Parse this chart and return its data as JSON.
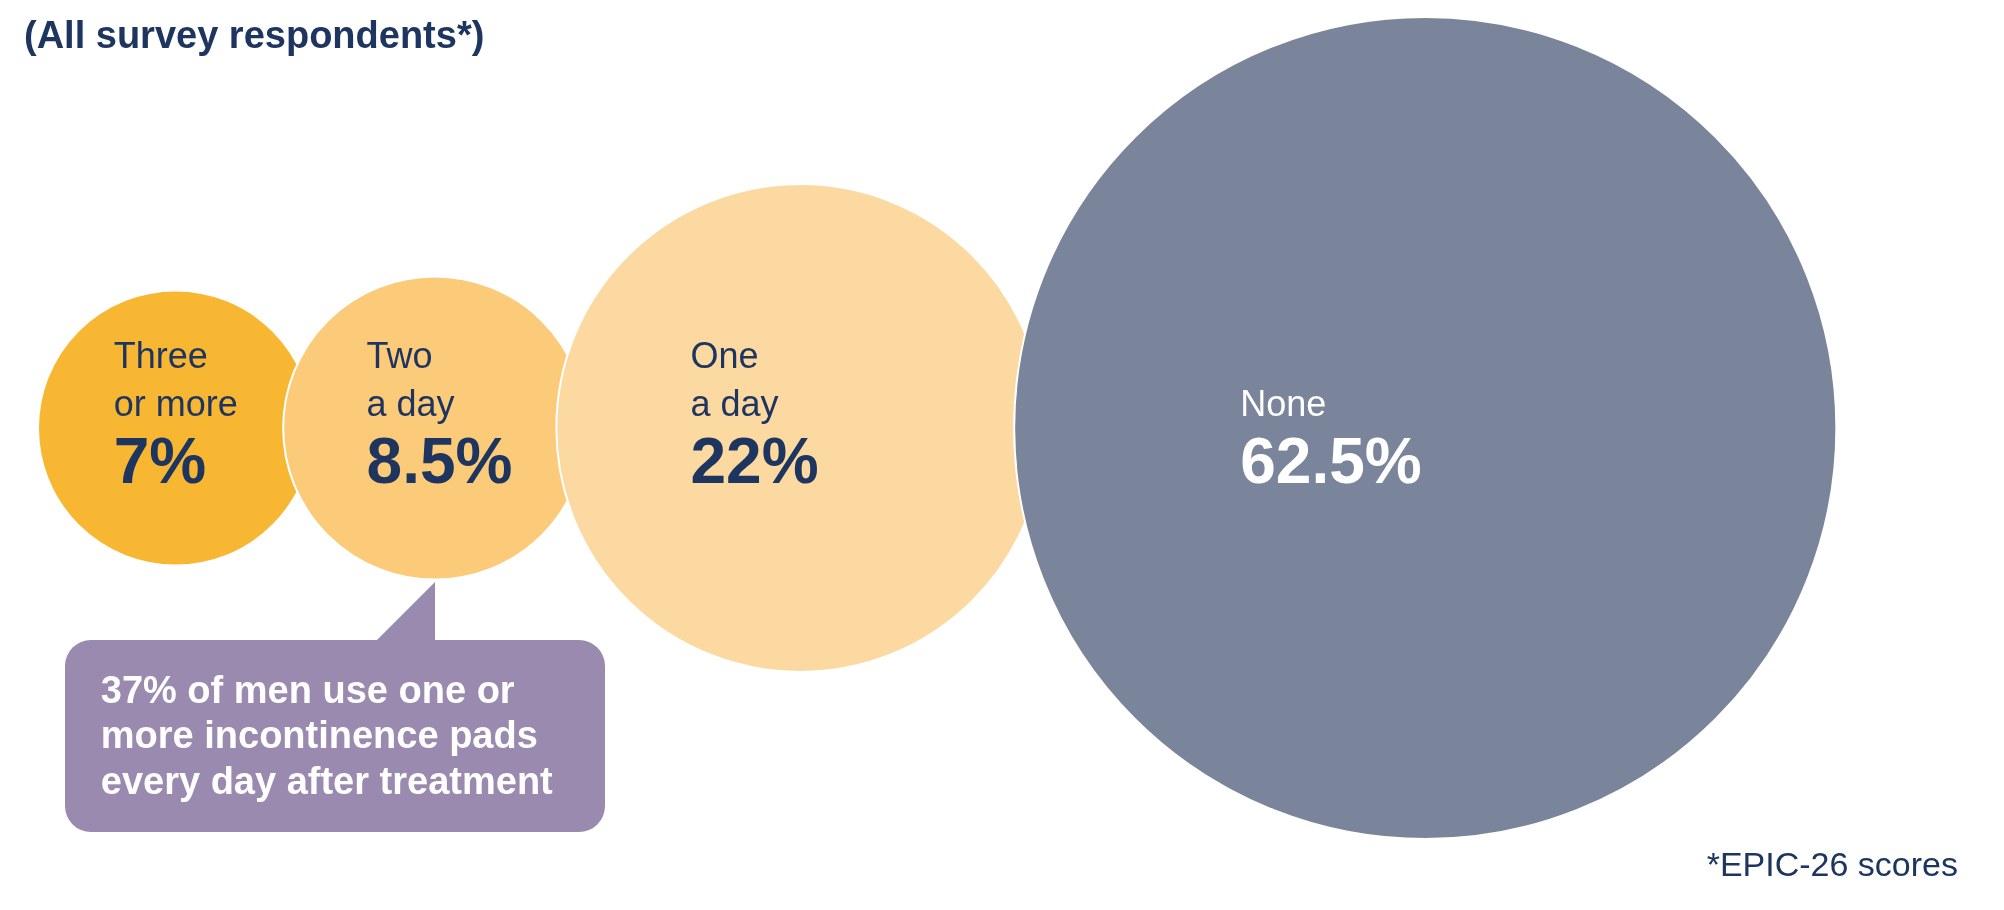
{
  "chart_data": {
    "type": "other",
    "title": "(All survey respondents*)",
    "categories": [
      "Three or more",
      "Two a day",
      "One a day",
      "None"
    ],
    "values": [
      7,
      8.5,
      22,
      62.5
    ],
    "value_labels": [
      "7%",
      "8.5%",
      "22%",
      "62.5%"
    ],
    "colors": [
      "#f8b733",
      "#fccb7a",
      "#fbd9a0",
      "#7a849b"
    ],
    "annotations": [
      "37% of men use one or more incontinence pads every day after treatment",
      "*EPIC-26 scores"
    ]
  }
}
